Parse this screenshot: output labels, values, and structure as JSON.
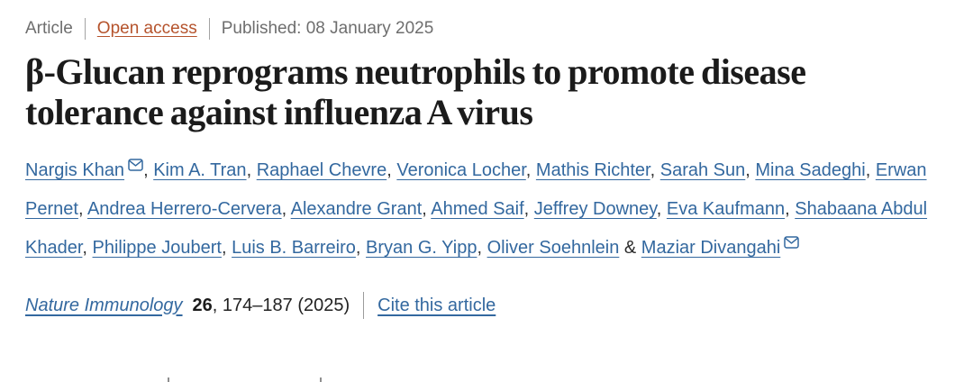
{
  "meta_row": {
    "article_type": "Article",
    "open_access": "Open access",
    "published": "Published: 08 January 2025"
  },
  "title": {
    "line1": "β-Glucan reprograms neutrophils to promote disease",
    "line2": "tolerance against influenza A virus"
  },
  "authors": {
    "list": [
      {
        "name": "Nargis Khan",
        "email_icon": true
      },
      {
        "name": "Kim A. Tran"
      },
      {
        "name": "Raphael Chevre"
      },
      {
        "name": "Veronica Locher"
      },
      {
        "name": "Mathis Richter"
      },
      {
        "name": "Sarah Sun"
      },
      {
        "name": "Mina Sadeghi"
      },
      {
        "name": "Erwan Pernet"
      },
      {
        "name": "Andrea Herrero-Cervera"
      },
      {
        "name": "Alexandre Grant"
      },
      {
        "name": "Ahmed Saif"
      },
      {
        "name": "Jeffrey Downey"
      },
      {
        "name": "Eva Kaufmann"
      },
      {
        "name": "Shabaana Abdul Khader"
      },
      {
        "name": "Philippe Joubert"
      },
      {
        "name": "Luis B. Barreiro"
      },
      {
        "name": "Bryan G. Yipp"
      },
      {
        "name": "Oliver Soehnlein"
      },
      {
        "name": "Maziar Divangahi",
        "email_icon": true
      }
    ],
    "separator_comma": ", ",
    "separator_amp": " & "
  },
  "journal": {
    "name": "Nature Immunology",
    "volume": "26",
    "pages_suffix": ", 174–187 (2025)",
    "cite_link": "Cite this article"
  },
  "icons": {
    "email": "envelope-icon"
  },
  "colors": {
    "link_blue": "#33689f",
    "open_access_rust": "#b5532c",
    "meta_gray": "#6e6e6e",
    "title_dark": "#1b1b1b",
    "divider_gray": "#a3a3a3"
  }
}
